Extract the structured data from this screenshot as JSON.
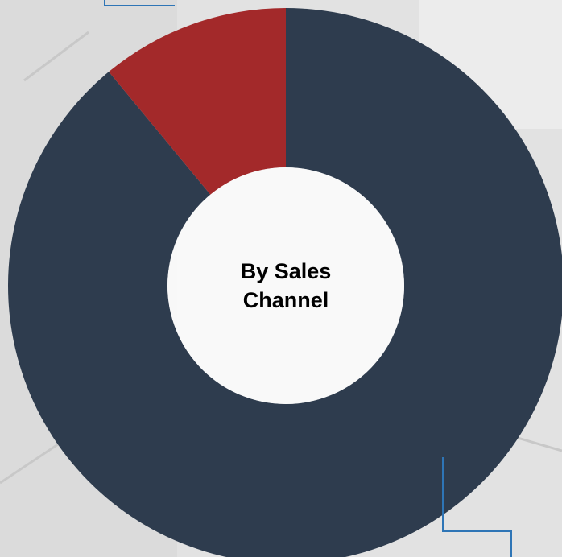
{
  "chart_data": {
    "type": "donut",
    "title": "By Sales Channel",
    "values": [
      89,
      11
    ],
    "colors": [
      "#2e3c4e",
      "#a3292a"
    ]
  }
}
